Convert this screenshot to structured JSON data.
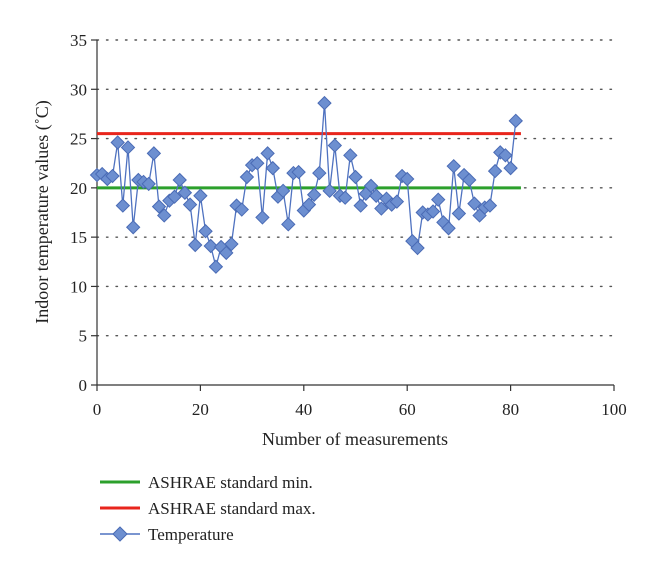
{
  "chart_data": {
    "type": "line",
    "xlabel": "Number of measurements",
    "ylabel": "Indoor temperature values (˚C)",
    "xlim": [
      0,
      100
    ],
    "ylim": [
      0,
      35
    ],
    "xticks": [
      0,
      20,
      40,
      60,
      80,
      100
    ],
    "yticks": [
      0,
      5,
      10,
      15,
      20,
      25,
      30,
      35
    ],
    "grid": "horizontal dotted",
    "legend_position": "bottom-left",
    "series": [
      {
        "name": "ASHRAE standard min.",
        "style": "line",
        "color": "#2ca02c",
        "x": [
          0,
          82
        ],
        "y": [
          20,
          20
        ]
      },
      {
        "name": "ASHRAE standard max.",
        "style": "line",
        "color": "#e8251c",
        "x": [
          0,
          82
        ],
        "y": [
          25.5,
          25.5
        ]
      },
      {
        "name": "Temperature",
        "style": "line-markers",
        "marker": "diamond",
        "color": "#4f72c0",
        "x": [
          0,
          1,
          2,
          3,
          4,
          5,
          6,
          7,
          8,
          9,
          10,
          11,
          12,
          13,
          14,
          15,
          16,
          17,
          18,
          19,
          20,
          21,
          22,
          23,
          24,
          25,
          26,
          27,
          28,
          29,
          30,
          31,
          32,
          33,
          34,
          35,
          36,
          37,
          38,
          39,
          40,
          41,
          42,
          43,
          44,
          45,
          46,
          47,
          48,
          49,
          50,
          51,
          52,
          53,
          54,
          55,
          56,
          57,
          58,
          59,
          60,
          61,
          62,
          63,
          64,
          65,
          66,
          67,
          68,
          69,
          70,
          71,
          72,
          73,
          74,
          75,
          76,
          77,
          78,
          79,
          80,
          81
        ],
        "y": [
          21.3,
          21.4,
          20.9,
          21.2,
          24.6,
          18.2,
          24.1,
          16.0,
          20.8,
          20.6,
          20.4,
          23.5,
          18.1,
          17.2,
          18.7,
          19.1,
          20.8,
          19.5,
          18.3,
          14.2,
          19.2,
          15.6,
          14.1,
          12.0,
          14.0,
          13.4,
          14.3,
          18.2,
          17.8,
          21.1,
          22.3,
          22.5,
          17.0,
          23.5,
          22.0,
          19.1,
          19.7,
          16.3,
          21.5,
          21.6,
          17.7,
          18.3,
          19.3,
          21.5,
          28.6,
          19.7,
          24.3,
          19.2,
          19.0,
          23.3,
          21.1,
          18.2,
          19.4,
          20.2,
          19.2,
          17.9,
          18.9,
          18.3,
          18.6,
          21.2,
          20.9,
          14.6,
          13.9,
          17.5,
          17.3,
          17.6,
          18.8,
          16.5,
          15.9,
          22.2,
          17.4,
          21.3,
          20.8,
          18.4,
          17.2,
          18.0,
          18.2,
          21.7,
          23.6,
          23.3,
          22.0,
          26.8
        ]
      }
    ]
  }
}
